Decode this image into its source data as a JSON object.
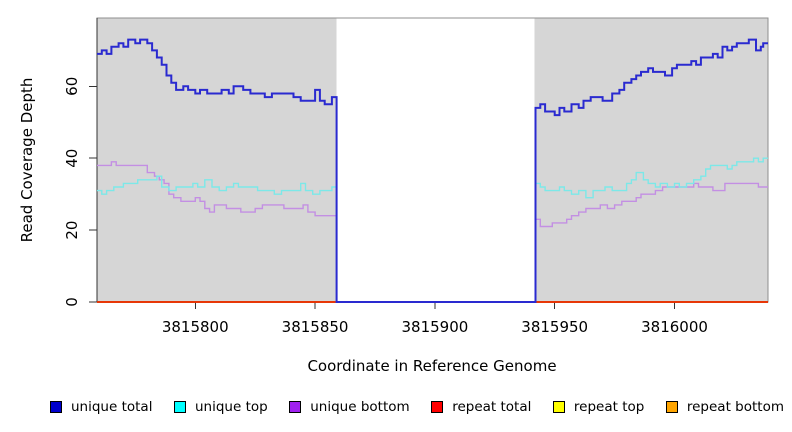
{
  "chart_data": {
    "type": "line",
    "subtype": "step-coverage-plot",
    "title": "",
    "xlabel": "Coordinate in Reference Genome",
    "ylabel": "Read Coverage Depth",
    "xlim": [
      3815759,
      3816039
    ],
    "ylim": [
      0,
      79
    ],
    "grid": false,
    "panel_bg": "#D6D6D6",
    "panel_border": "#8F8F8F",
    "axis_color": "#333333",
    "mask_region": {
      "x0": 3815859,
      "x1": 3815941.5,
      "color": "#FFFFFF"
    },
    "x_ticks": {
      "values": [
        3815800,
        3815850,
        3815900,
        3815950,
        3816000
      ],
      "labels": [
        "3815800",
        "3815850",
        "3815900",
        "3815950",
        "3816000"
      ]
    },
    "y_ticks": {
      "values": [
        0,
        20,
        40,
        60
      ],
      "labels": [
        "0",
        "20",
        "40",
        "60"
      ]
    },
    "legend_position": "bottom",
    "series": [
      {
        "name": "unique total",
        "line_color": "#2A2AD0",
        "line_width": 2,
        "points": [
          [
            3815759,
            69
          ],
          [
            3815761,
            70
          ],
          [
            3815763,
            69
          ],
          [
            3815765,
            71
          ],
          [
            3815768,
            72
          ],
          [
            3815770,
            71
          ],
          [
            3815772,
            73
          ],
          [
            3815775,
            72
          ],
          [
            3815777,
            73
          ],
          [
            3815780,
            72
          ],
          [
            3815782,
            70
          ],
          [
            3815784,
            68
          ],
          [
            3815786,
            66
          ],
          [
            3815788,
            63
          ],
          [
            3815790,
            61
          ],
          [
            3815792,
            59
          ],
          [
            3815795,
            60
          ],
          [
            3815797,
            59
          ],
          [
            3815800,
            58
          ],
          [
            3815802,
            59
          ],
          [
            3815805,
            58
          ],
          [
            3815811,
            59
          ],
          [
            3815814,
            58
          ],
          [
            3815816,
            60
          ],
          [
            3815820,
            59
          ],
          [
            3815823,
            58
          ],
          [
            3815829,
            57
          ],
          [
            3815832,
            58
          ],
          [
            3815841,
            57
          ],
          [
            3815844,
            56
          ],
          [
            3815850,
            59
          ],
          [
            3815852,
            56
          ],
          [
            3815854,
            55
          ],
          [
            3815857,
            57
          ],
          [
            3815859,
            0
          ],
          [
            3815942,
            54
          ],
          [
            3815944,
            55
          ],
          [
            3815946,
            53
          ],
          [
            3815950,
            52
          ],
          [
            3815952,
            54
          ],
          [
            3815954,
            53
          ],
          [
            3815957,
            55
          ],
          [
            3815960,
            54
          ],
          [
            3815962,
            56
          ],
          [
            3815965,
            57
          ],
          [
            3815970,
            56
          ],
          [
            3815974,
            58
          ],
          [
            3815977,
            59
          ],
          [
            3815979,
            61
          ],
          [
            3815982,
            62
          ],
          [
            3815984,
            63
          ],
          [
            3815986,
            64
          ],
          [
            3815989,
            65
          ],
          [
            3815991,
            64
          ],
          [
            3815996,
            63
          ],
          [
            3815999,
            65
          ],
          [
            3816001,
            66
          ],
          [
            3816007,
            67
          ],
          [
            3816009,
            66
          ],
          [
            3816011,
            68
          ],
          [
            3816016,
            69
          ],
          [
            3816018,
            68
          ],
          [
            3816020,
            71
          ],
          [
            3816022,
            70
          ],
          [
            3816024,
            71
          ],
          [
            3816026,
            72
          ],
          [
            3816031,
            73
          ],
          [
            3816034,
            70
          ],
          [
            3816036,
            71
          ],
          [
            3816037,
            72
          ],
          [
            3816039,
            72
          ]
        ]
      },
      {
        "name": "unique top",
        "line_color": "#7CE8E8",
        "line_width": 1.4,
        "points": [
          [
            3815759,
            31
          ],
          [
            3815761,
            30
          ],
          [
            3815763,
            31
          ],
          [
            3815766,
            32
          ],
          [
            3815770,
            33
          ],
          [
            3815776,
            34
          ],
          [
            3815784,
            35
          ],
          [
            3815786,
            32
          ],
          [
            3815789,
            31
          ],
          [
            3815792,
            32
          ],
          [
            3815799,
            33
          ],
          [
            3815801,
            32
          ],
          [
            3815804,
            34
          ],
          [
            3815807,
            32
          ],
          [
            3815810,
            31
          ],
          [
            3815813,
            32
          ],
          [
            3815816,
            33
          ],
          [
            3815818,
            32
          ],
          [
            3815826,
            31
          ],
          [
            3815833,
            30
          ],
          [
            3815836,
            31
          ],
          [
            3815844,
            33
          ],
          [
            3815846,
            31
          ],
          [
            3815849,
            30
          ],
          [
            3815852,
            31
          ],
          [
            3815857,
            32
          ],
          [
            3815859,
            0
          ],
          [
            3815942,
            33
          ],
          [
            3815944,
            32
          ],
          [
            3815946,
            31
          ],
          [
            3815952,
            32
          ],
          [
            3815954,
            31
          ],
          [
            3815957,
            30
          ],
          [
            3815960,
            31
          ],
          [
            3815963,
            29
          ],
          [
            3815966,
            31
          ],
          [
            3815971,
            32
          ],
          [
            3815974,
            31
          ],
          [
            3815980,
            33
          ],
          [
            3815982,
            34
          ],
          [
            3815984,
            36
          ],
          [
            3815987,
            34
          ],
          [
            3815989,
            33
          ],
          [
            3815992,
            32
          ],
          [
            3815994,
            33
          ],
          [
            3815997,
            32
          ],
          [
            3816000,
            33
          ],
          [
            3816002,
            32
          ],
          [
            3816005,
            33
          ],
          [
            3816008,
            34
          ],
          [
            3816011,
            35
          ],
          [
            3816013,
            37
          ],
          [
            3816015,
            38
          ],
          [
            3816022,
            37
          ],
          [
            3816024,
            38
          ],
          [
            3816026,
            39
          ],
          [
            3816033,
            40
          ],
          [
            3816035,
            39
          ],
          [
            3816037,
            40
          ],
          [
            3816039,
            40
          ]
        ]
      },
      {
        "name": "unique bottom",
        "line_color": "#C38FE3",
        "line_width": 1.4,
        "points": [
          [
            3815759,
            38
          ],
          [
            3815765,
            39
          ],
          [
            3815767,
            38
          ],
          [
            3815780,
            36
          ],
          [
            3815783,
            35
          ],
          [
            3815785,
            34
          ],
          [
            3815787,
            33
          ],
          [
            3815789,
            30
          ],
          [
            3815791,
            29
          ],
          [
            3815794,
            28
          ],
          [
            3815800,
            29
          ],
          [
            3815802,
            28
          ],
          [
            3815804,
            26
          ],
          [
            3815806,
            25
          ],
          [
            3815808,
            27
          ],
          [
            3815813,
            26
          ],
          [
            3815819,
            25
          ],
          [
            3815825,
            26
          ],
          [
            3815828,
            27
          ],
          [
            3815837,
            26
          ],
          [
            3815845,
            27
          ],
          [
            3815847,
            25
          ],
          [
            3815850,
            24
          ],
          [
            3815859,
            0
          ],
          [
            3815942,
            23
          ],
          [
            3815944,
            21
          ],
          [
            3815949,
            22
          ],
          [
            3815955,
            23
          ],
          [
            3815957,
            24
          ],
          [
            3815960,
            25
          ],
          [
            3815963,
            26
          ],
          [
            3815969,
            27
          ],
          [
            3815972,
            26
          ],
          [
            3815975,
            27
          ],
          [
            3815978,
            28
          ],
          [
            3815984,
            29
          ],
          [
            3815986,
            30
          ],
          [
            3815992,
            31
          ],
          [
            3815995,
            32
          ],
          [
            3816008,
            33
          ],
          [
            3816010,
            32
          ],
          [
            3816016,
            31
          ],
          [
            3816021,
            33
          ],
          [
            3816035,
            32
          ],
          [
            3816039,
            32
          ]
        ]
      },
      {
        "name": "repeat total",
        "line_color": "#E00000",
        "line_width": 1.5,
        "points": [
          [
            3815759,
            0
          ],
          [
            3816039,
            0
          ]
        ]
      },
      {
        "name": "repeat top",
        "line_color": "#FFFF00",
        "line_width": 1.5,
        "points": [
          [
            3815759,
            0
          ],
          [
            3816039,
            0
          ]
        ]
      },
      {
        "name": "repeat bottom",
        "line_color": "#FFA500",
        "line_width": 1.8,
        "points": [
          [
            3815759,
            0
          ],
          [
            3816039,
            0
          ]
        ]
      }
    ],
    "legend": [
      {
        "label": "unique total",
        "fill": "#0000CD"
      },
      {
        "label": "unique top",
        "fill": "#00FFFF"
      },
      {
        "label": "unique bottom",
        "fill": "#A020F0"
      },
      {
        "label": "repeat total",
        "fill": "#FF0000"
      },
      {
        "label": "repeat top",
        "fill": "#FFFF00"
      },
      {
        "label": "repeat bottom",
        "fill": "#FFA500"
      }
    ]
  }
}
